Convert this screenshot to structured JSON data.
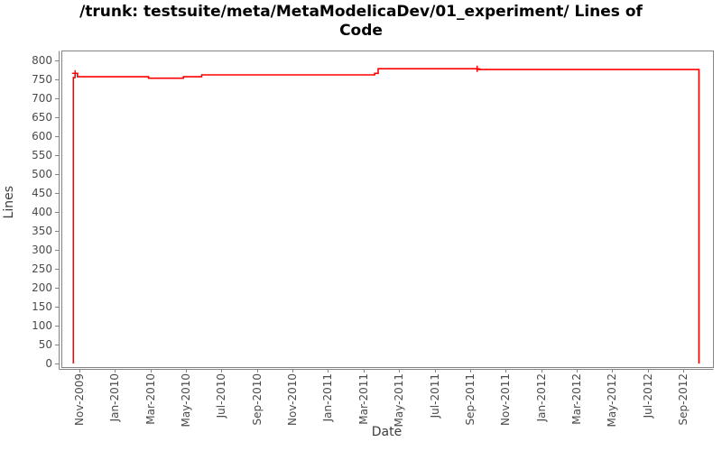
{
  "title": {
    "line1": "/trunk: testsuite/meta/MetaModelicaDev/01_experiment/ Lines of",
    "line2": "Code"
  },
  "colors": {
    "series": "#ff0000",
    "plot_border": "#848484",
    "axis": "#848484",
    "tick_text": "#4a4a4a",
    "title_text": "#000000"
  },
  "chart_data": {
    "type": "line",
    "title": "/trunk: testsuite/meta/MetaModelicaDev/01_experiment/ Lines of Code",
    "xlabel": "Date",
    "ylabel": "Lines",
    "ylim": [
      0,
      800
    ],
    "ytick_step": 50,
    "yticks": [
      0,
      50,
      100,
      150,
      200,
      250,
      300,
      350,
      400,
      450,
      500,
      550,
      600,
      650,
      700,
      750,
      800
    ],
    "xticks": [
      "Nov-2009",
      "Jan-2010",
      "Mar-2010",
      "May-2010",
      "Jul-2010",
      "Sep-2010",
      "Nov-2010",
      "Jan-2011",
      "Mar-2011",
      "May-2011",
      "Jul-2011",
      "Sep-2011",
      "Nov-2011",
      "Jan-2012",
      "Mar-2012",
      "May-2012",
      "Jul-2012",
      "Sep-2012"
    ],
    "grid": false,
    "legend": "none",
    "series": [
      {
        "name": "Lines of Code",
        "color": "#ff0000",
        "points": [
          [
            "2009-10-21",
            0
          ],
          [
            "2009-10-21",
            755
          ],
          [
            "2009-10-24",
            755
          ],
          [
            "2009-10-24",
            766
          ],
          [
            "2009-10-28",
            766
          ],
          [
            "2009-10-28",
            757
          ],
          [
            "2010-02-28",
            757
          ],
          [
            "2010-02-28",
            753
          ],
          [
            "2010-04-27",
            753
          ],
          [
            "2010-04-27",
            757
          ],
          [
            "2010-05-28",
            757
          ],
          [
            "2010-05-28",
            762
          ],
          [
            "2011-03-20",
            762
          ],
          [
            "2011-03-20",
            766
          ],
          [
            "2011-03-26",
            766
          ],
          [
            "2011-03-26",
            778
          ],
          [
            "2011-09-13",
            778
          ],
          [
            "2011-09-13",
            776
          ],
          [
            "2012-09-28",
            776
          ],
          [
            "2012-09-28",
            0
          ]
        ]
      }
    ],
    "markers": [
      [
        "2009-10-24",
        766
      ],
      [
        "2011-09-13",
        778
      ]
    ]
  }
}
